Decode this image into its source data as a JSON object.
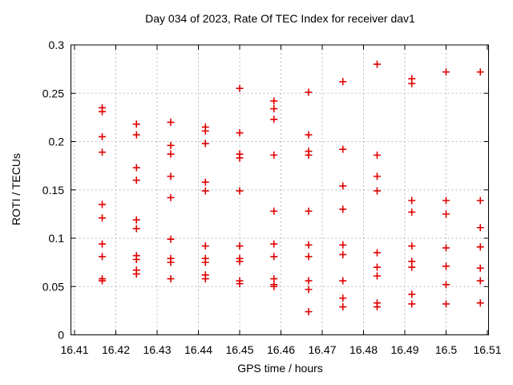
{
  "chart_data": {
    "type": "scatter",
    "title": "Day 034 of 2023, Rate Of TEC Index for receiver dav1",
    "xlabel": "GPS time / hours",
    "ylabel": "ROTI / TECUs",
    "xlim": [
      16.409,
      16.5103
    ],
    "ylim": [
      0,
      0.3
    ],
    "xticks": [
      16.41,
      16.42,
      16.43,
      16.44,
      16.45,
      16.46,
      16.47,
      16.48,
      16.49,
      16.5,
      16.51
    ],
    "xtick_labels": [
      "16.41",
      "16.42",
      "16.43",
      "16.44",
      "16.45",
      "16.46",
      "16.47",
      "16.48",
      "16.49",
      "16.5",
      "16.51"
    ],
    "yticks": [
      0,
      0.05,
      0.1,
      0.15,
      0.2,
      0.25,
      0.3
    ],
    "ytick_labels": [
      "0",
      "0.05",
      "0.1",
      "0.15",
      "0.2",
      "0.25",
      "0.3"
    ],
    "grid": true,
    "legend": "none",
    "marker": "plus",
    "marker_color": "#e00000",
    "grid_color": "#bbbbbb",
    "frame_color": "#000000",
    "background": "#ffffff",
    "points": [
      [
        16.4167,
        0.235
      ],
      [
        16.4167,
        0.231
      ],
      [
        16.4167,
        0.205
      ],
      [
        16.4167,
        0.189
      ],
      [
        16.4167,
        0.135
      ],
      [
        16.4167,
        0.121
      ],
      [
        16.4167,
        0.094
      ],
      [
        16.4167,
        0.081
      ],
      [
        16.4167,
        0.058
      ],
      [
        16.4167,
        0.056
      ],
      [
        16.425,
        0.218
      ],
      [
        16.425,
        0.207
      ],
      [
        16.425,
        0.173
      ],
      [
        16.425,
        0.16
      ],
      [
        16.425,
        0.119
      ],
      [
        16.425,
        0.11
      ],
      [
        16.425,
        0.082
      ],
      [
        16.425,
        0.078
      ],
      [
        16.425,
        0.067
      ],
      [
        16.425,
        0.063
      ],
      [
        16.4333,
        0.22
      ],
      [
        16.4333,
        0.196
      ],
      [
        16.4333,
        0.187
      ],
      [
        16.4333,
        0.164
      ],
      [
        16.4333,
        0.142
      ],
      [
        16.4333,
        0.099
      ],
      [
        16.4333,
        0.079
      ],
      [
        16.4333,
        0.075
      ],
      [
        16.4333,
        0.058
      ],
      [
        16.4417,
        0.215
      ],
      [
        16.4417,
        0.211
      ],
      [
        16.4417,
        0.198
      ],
      [
        16.4417,
        0.158
      ],
      [
        16.4417,
        0.149
      ],
      [
        16.4417,
        0.092
      ],
      [
        16.4417,
        0.079
      ],
      [
        16.4417,
        0.075
      ],
      [
        16.4417,
        0.062
      ],
      [
        16.4417,
        0.058
      ],
      [
        16.45,
        0.255
      ],
      [
        16.45,
        0.209
      ],
      [
        16.45,
        0.187
      ],
      [
        16.45,
        0.183
      ],
      [
        16.45,
        0.149
      ],
      [
        16.45,
        0.092
      ],
      [
        16.45,
        0.079
      ],
      [
        16.45,
        0.076
      ],
      [
        16.45,
        0.056
      ],
      [
        16.45,
        0.053
      ],
      [
        16.4583,
        0.242
      ],
      [
        16.4583,
        0.234
      ],
      [
        16.4583,
        0.223
      ],
      [
        16.4583,
        0.186
      ],
      [
        16.4583,
        0.128
      ],
      [
        16.4583,
        0.094
      ],
      [
        16.4583,
        0.081
      ],
      [
        16.4583,
        0.058
      ],
      [
        16.4583,
        0.052
      ],
      [
        16.4583,
        0.05
      ],
      [
        16.4667,
        0.251
      ],
      [
        16.4667,
        0.207
      ],
      [
        16.4667,
        0.19
      ],
      [
        16.4667,
        0.186
      ],
      [
        16.4667,
        0.128
      ],
      [
        16.4667,
        0.093
      ],
      [
        16.4667,
        0.081
      ],
      [
        16.4667,
        0.056
      ],
      [
        16.4667,
        0.047
      ],
      [
        16.4667,
        0.024
      ],
      [
        16.475,
        0.262
      ],
      [
        16.475,
        0.192
      ],
      [
        16.475,
        0.154
      ],
      [
        16.475,
        0.13
      ],
      [
        16.475,
        0.093
      ],
      [
        16.475,
        0.083
      ],
      [
        16.475,
        0.056
      ],
      [
        16.475,
        0.038
      ],
      [
        16.475,
        0.029
      ],
      [
        16.4833,
        0.28
      ],
      [
        16.4833,
        0.186
      ],
      [
        16.4833,
        0.164
      ],
      [
        16.4833,
        0.149
      ],
      [
        16.4833,
        0.085
      ],
      [
        16.4833,
        0.07
      ],
      [
        16.4833,
        0.061
      ],
      [
        16.4833,
        0.033
      ],
      [
        16.4833,
        0.029
      ],
      [
        16.4917,
        0.265
      ],
      [
        16.4917,
        0.26
      ],
      [
        16.4917,
        0.139
      ],
      [
        16.4917,
        0.127
      ],
      [
        16.4917,
        0.092
      ],
      [
        16.4917,
        0.076
      ],
      [
        16.4917,
        0.07
      ],
      [
        16.4917,
        0.042
      ],
      [
        16.4917,
        0.032
      ],
      [
        16.5,
        0.272
      ],
      [
        16.5,
        0.139
      ],
      [
        16.5,
        0.125
      ],
      [
        16.5,
        0.09
      ],
      [
        16.5,
        0.071
      ],
      [
        16.5,
        0.052
      ],
      [
        16.5,
        0.032
      ],
      [
        16.5083,
        0.272
      ],
      [
        16.5083,
        0.139
      ],
      [
        16.5083,
        0.111
      ],
      [
        16.5083,
        0.091
      ],
      [
        16.5083,
        0.069
      ],
      [
        16.5083,
        0.056
      ],
      [
        16.5083,
        0.033
      ]
    ]
  }
}
